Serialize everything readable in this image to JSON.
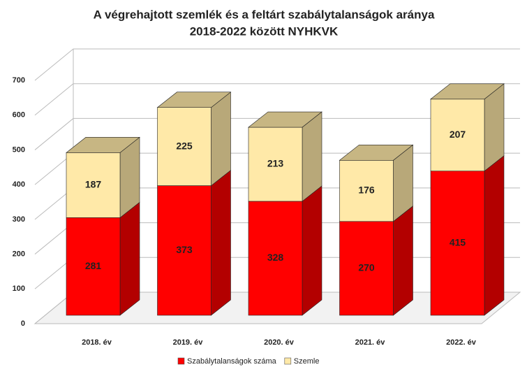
{
  "chart_data": {
    "type": "bar3d_stacked",
    "title": [
      "A végrehajtott szemlék és a feltárt szabálytalanságok aránya",
      "2018-2022 között NYHKVK"
    ],
    "categories": [
      "2018. év",
      "2019. év",
      "2020. év",
      "2021. év",
      "2022. év"
    ],
    "series": [
      {
        "name": "Szabálytalanságok száma",
        "color": "#ff0000",
        "values": [
          281,
          373,
          328,
          270,
          415
        ]
      },
      {
        "name": "Szemle",
        "color": "#ffe9a8",
        "values": [
          187,
          225,
          213,
          176,
          207
        ]
      }
    ],
    "ylim": [
      0,
      700
    ],
    "yticks": [
      0,
      100,
      200,
      300,
      400,
      500,
      600,
      700
    ],
    "grid": true,
    "legend": "bottom"
  }
}
